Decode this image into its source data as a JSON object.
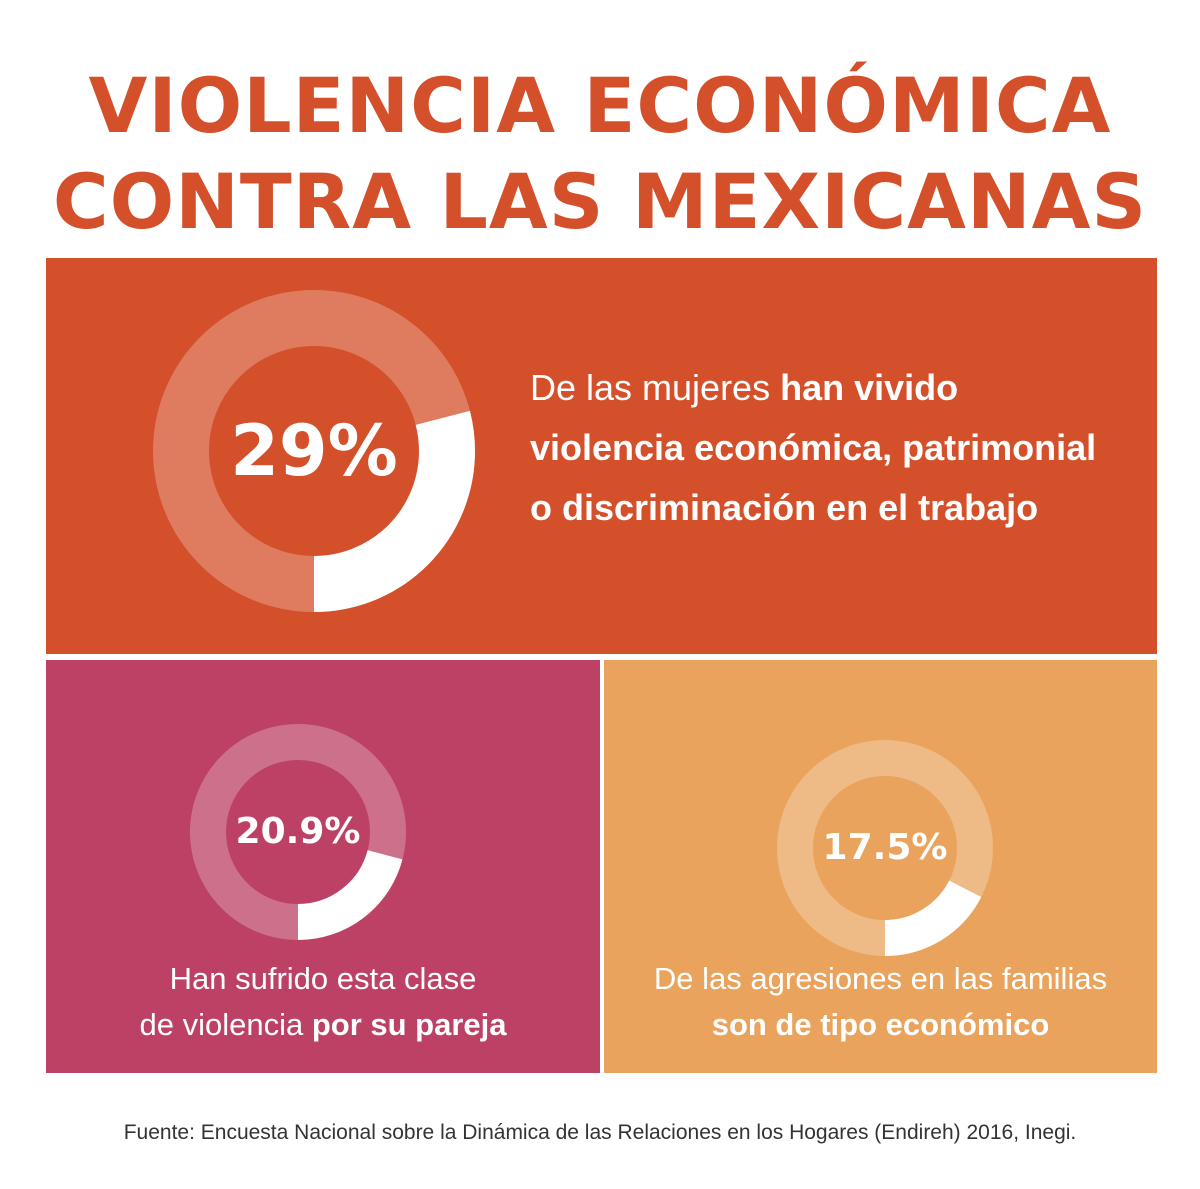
{
  "title": {
    "line1": "VIOLENCIA ECONÓMICA",
    "line2": "CONTRA LAS MEXICANAS"
  },
  "colors": {
    "title": "#d4502b",
    "panel_main": "#d4502b",
    "panel_partner": "#bc4165",
    "panel_family": "#e9a35c",
    "ring_filled": "#ffffff",
    "text": "#ffffff"
  },
  "chart_data": [
    {
      "type": "pie",
      "style": "donut",
      "label": "29%",
      "value": 29,
      "max": 100,
      "description": {
        "line1_normal": "De las mujeres ",
        "line1_bold": "han vivido",
        "line2_bold": "violencia económica, patrimonial",
        "line3_bold": "o discriminación en el trabajo"
      }
    },
    {
      "type": "pie",
      "style": "donut",
      "label": "20.9%",
      "value": 20.9,
      "max": 100,
      "description": {
        "line1_normal": "Han sufrido esta clase",
        "line2_normal": "de violencia ",
        "line2_bold": "por su pareja"
      }
    },
    {
      "type": "pie",
      "style": "donut",
      "label": "17.5%",
      "value": 17.5,
      "max": 100,
      "description": {
        "line1_normal": "De las agresiones en las familias",
        "line2_bold": "son de tipo económico"
      }
    }
  ],
  "source": "Fuente: Encuesta Nacional sobre la Dinámica de las Relaciones en los Hogares (Endireh) 2016, Inegi."
}
